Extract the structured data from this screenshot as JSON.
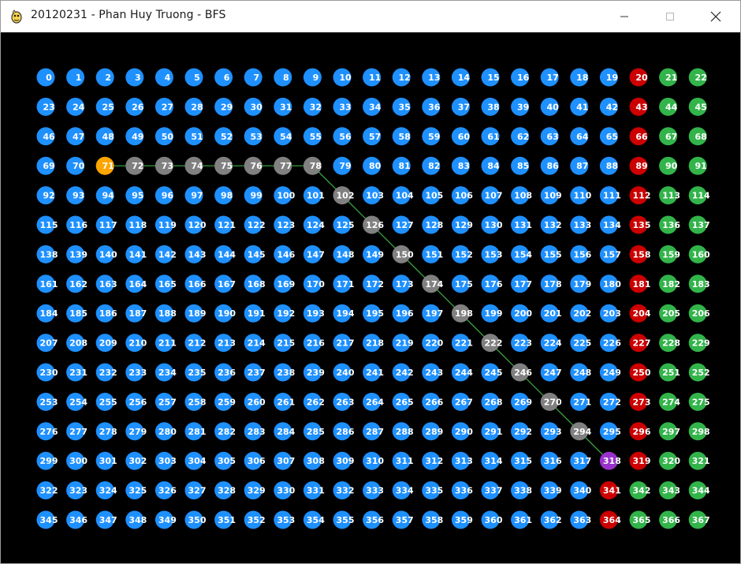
{
  "window": {
    "title": "20120231 - Phan Huy Truong - BFS",
    "app_icon": "pygame-snake-icon",
    "controls": [
      "minimize-icon",
      "maximize-icon",
      "close-icon"
    ]
  },
  "grid": {
    "rows": 16,
    "cols": 23,
    "start_node": 71,
    "goal_node": 318,
    "path": [
      71,
      72,
      73,
      74,
      75,
      76,
      77,
      78,
      102,
      126,
      150,
      174,
      198,
      222,
      246,
      270,
      294,
      318
    ],
    "red_nodes": [
      20,
      43,
      66,
      89,
      112,
      135,
      158,
      181,
      204,
      227,
      250,
      273,
      296,
      319,
      341,
      364
    ],
    "green_nodes": [
      21,
      22,
      44,
      45,
      67,
      68,
      90,
      91,
      113,
      114,
      136,
      137,
      159,
      160,
      182,
      183,
      205,
      206,
      228,
      229,
      251,
      252,
      274,
      275,
      297,
      298,
      320,
      321,
      342,
      343,
      344,
      365,
      366,
      367
    ]
  },
  "colors": {
    "background": "#000000",
    "default_node": "#1e90ff",
    "path_node": "#808080",
    "start_node": "#ffa500",
    "goal_node": "#9932cc",
    "red_node": "#cc0000",
    "green_node": "#32b44a",
    "path_line": "#3cb043",
    "label": "#ffffff"
  }
}
